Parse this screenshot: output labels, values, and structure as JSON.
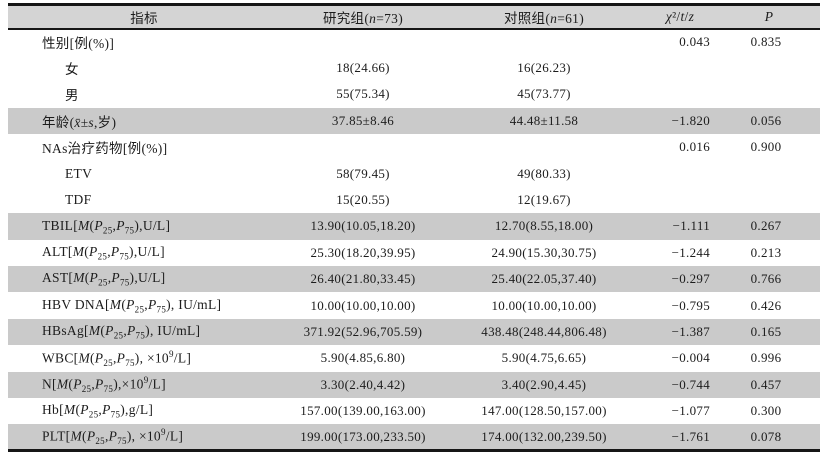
{
  "colors": {
    "page_bg": "#ffffff",
    "header_bg": "#d4d4d4",
    "stripe_bg": "#cacaca",
    "rule": "#161616",
    "text": "#1c1c1c"
  },
  "table": {
    "columns": [
      {
        "key": "indicator",
        "label": "指标"
      },
      {
        "key": "study_group",
        "label": "研究组(<i>n</i>=73)"
      },
      {
        "key": "control_group",
        "label": "对照组(<i>n</i>=61)"
      },
      {
        "key": "statistic",
        "label": "<i>χ</i>²/<i>t</i>/<i>z</i>"
      },
      {
        "key": "p_value",
        "label": "<i>P</i>"
      }
    ],
    "rows": [
      {
        "label": "性别[例(%)]",
        "study": "",
        "control": "",
        "stat": "0.043",
        "p": "0.835",
        "indent": false,
        "shaded": false
      },
      {
        "label": "女",
        "study": "18(24.66)",
        "control": "16(26.23)",
        "stat": "",
        "p": "",
        "indent": true,
        "shaded": false
      },
      {
        "label": "男",
        "study": "55(75.34)",
        "control": "45(73.77)",
        "stat": "",
        "p": "",
        "indent": true,
        "shaded": false
      },
      {
        "label": "年龄(<i>x̄</i>±<i>s</i>,岁)",
        "study": "37.85±8.46",
        "control": "44.48±11.58",
        "stat": "−1.820",
        "p": "0.056",
        "indent": false,
        "shaded": true
      },
      {
        "label": "NAs治疗药物[例(%)]",
        "study": "",
        "control": "",
        "stat": "0.016",
        "p": "0.900",
        "indent": false,
        "shaded": false
      },
      {
        "label": "ETV",
        "study": "58(79.45)",
        "control": "49(80.33)",
        "stat": "",
        "p": "",
        "indent": true,
        "shaded": false
      },
      {
        "label": "TDF",
        "study": "15(20.55)",
        "control": "12(19.67)",
        "stat": "",
        "p": "",
        "indent": true,
        "shaded": false
      },
      {
        "label": "TBIL[<i>M</i>(<i>P</i><sub>25</sub>,<i>P</i><sub>75</sub>),U/L]",
        "study": "13.90(10.05,18.20)",
        "control": "12.70(8.55,18.00)",
        "stat": "−1.111",
        "p": "0.267",
        "indent": false,
        "shaded": true
      },
      {
        "label": "ALT[<i>M</i>(<i>P</i><sub>25</sub>,<i>P</i><sub>75</sub>),U/L]",
        "study": "25.30(18.20,39.95)",
        "control": "24.90(15.30,30.75)",
        "stat": "−1.244",
        "p": "0.213",
        "indent": false,
        "shaded": false
      },
      {
        "label": "AST[<i>M</i>(<i>P</i><sub>25</sub>,<i>P</i><sub>75</sub>),U/L]",
        "study": "26.40(21.80,33.45)",
        "control": "25.40(22.05,37.40)",
        "stat": "−0.297",
        "p": "0.766",
        "indent": false,
        "shaded": true
      },
      {
        "label": "HBV DNA[<i>M</i>(<i>P</i><sub>25</sub>,<i>P</i><sub>75</sub>), IU/mL]",
        "study": "10.00(10.00,10.00)",
        "control": "10.00(10.00,10.00)",
        "stat": "−0.795",
        "p": "0.426",
        "indent": false,
        "shaded": false
      },
      {
        "label": "HBsAg[<i>M</i>(<i>P</i><sub>25</sub>,<i>P</i><sub>75</sub>), IU/mL]",
        "study": "371.92(52.96,705.59)",
        "control": "438.48(248.44,806.48)",
        "stat": "−1.387",
        "p": "0.165",
        "indent": false,
        "shaded": true
      },
      {
        "label": "WBC[<i>M</i>(<i>P</i><sub>25</sub>,<i>P</i><sub>75</sub>), ×10<sup>9</sup>/L]",
        "study": "5.90(4.85,6.80)",
        "control": "5.90(4.75,6.65)",
        "stat": "−0.004",
        "p": "0.996",
        "indent": false,
        "shaded": false
      },
      {
        "label": "N[<i>M</i>(<i>P</i><sub>25</sub>,<i>P</i><sub>75</sub>),×10<sup>9</sup>/L]",
        "study": "3.30(2.40,4.42)",
        "control": "3.40(2.90,4.45)",
        "stat": "−0.744",
        "p": "0.457",
        "indent": false,
        "shaded": true
      },
      {
        "label": "Hb[<i>M</i>(<i>P</i><sub>25</sub>,<i>P</i><sub>75</sub>),g/L]",
        "study": "157.00(139.00,163.00)",
        "control": "147.00(128.50,157.00)",
        "stat": "−1.077",
        "p": "0.300",
        "indent": false,
        "shaded": false
      },
      {
        "label": "PLT[<i>M</i>(<i>P</i><sub>25</sub>,<i>P</i><sub>75</sub>), ×10<sup>9</sup>/L]",
        "study": "199.00(173.00,233.50)",
        "control": "174.00(132.00,239.50)",
        "stat": "−1.761",
        "p": "0.078",
        "indent": false,
        "shaded": true
      }
    ]
  }
}
